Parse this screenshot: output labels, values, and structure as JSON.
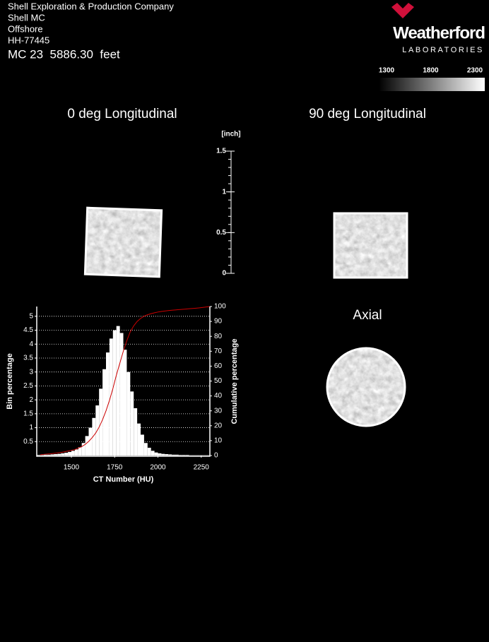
{
  "header": {
    "lines": [
      "Shell Exploration & Production Company",
      "Shell MC",
      "Offshore",
      "HH-77445"
    ],
    "sample": "MC 23  5886.30  feet"
  },
  "logo": {
    "name": "Weatherford",
    "sub": "LABORATORIES"
  },
  "colorbar": {
    "ticks": [
      1300,
      1800,
      2300
    ]
  },
  "panels": {
    "longitudinal_0": "0 deg Longitudinal",
    "longitudinal_90": "90 deg Longitudinal",
    "axial": "Axial"
  },
  "ruler": {
    "unit": "[inch]",
    "lim": [
      0,
      1.5
    ],
    "ticks": [
      0,
      0.5,
      1,
      1.5
    ]
  },
  "chart_data": {
    "type": "histogram",
    "x_label": "CT Number (HU)",
    "y_label": "Bin percentage",
    "y2_label": "Cumulative percentage",
    "color": "#ffffff",
    "cumulative_color": "#cc0000",
    "grid": true,
    "xlim": [
      1300,
      2300
    ],
    "xticks": [
      1500,
      1750,
      2000,
      2250
    ],
    "ylim": [
      0,
      5.35
    ],
    "yticks": [
      0.5,
      1,
      1.5,
      2,
      2.5,
      3,
      3.5,
      4,
      4.5,
      5
    ],
    "y2lim": [
      0,
      100
    ],
    "y2ticks": [
      0,
      10,
      20,
      30,
      40,
      50,
      60,
      70,
      80,
      90,
      100
    ],
    "bins": [
      1300,
      1320,
      1340,
      1360,
      1380,
      1400,
      1420,
      1440,
      1460,
      1480,
      1500,
      1520,
      1540,
      1560,
      1580,
      1600,
      1620,
      1640,
      1660,
      1680,
      1700,
      1720,
      1740,
      1760,
      1780,
      1800,
      1820,
      1840,
      1860,
      1880,
      1900,
      1920,
      1940,
      1960,
      1980,
      2000,
      2020,
      2040,
      2060,
      2080,
      2100,
      2120,
      2140,
      2160,
      2180,
      2200,
      2220,
      2240,
      2260,
      2280,
      2300
    ],
    "values": [
      0.02,
      0.02,
      0.03,
      0.03,
      0.04,
      0.05,
      0.06,
      0.08,
      0.1,
      0.13,
      0.17,
      0.22,
      0.3,
      0.45,
      0.7,
      1.0,
      1.35,
      1.8,
      2.4,
      3.1,
      3.7,
      4.2,
      4.5,
      4.65,
      4.4,
      3.8,
      3.0,
      2.3,
      1.7,
      1.15,
      0.75,
      0.45,
      0.28,
      0.17,
      0.11,
      0.08,
      0.06,
      0.05,
      0.04,
      0.03,
      0.03,
      0.02,
      0.02,
      0.02,
      0.01,
      0.01,
      0.01,
      0.01,
      0.01,
      0.01
    ],
    "cumulative": [
      0.5,
      0.8,
      1,
      1.2,
      1.5,
      1.8,
      2.1,
      2.5,
      3,
      3.5,
      4,
      5,
      6,
      7.5,
      9.5,
      12,
      15,
      19,
      24,
      30,
      37,
      45,
      54,
      62,
      70,
      77,
      83,
      87,
      90,
      92,
      93.5,
      94.5,
      95.2,
      95.8,
      96.3,
      96.7,
      97,
      97.3,
      97.5,
      97.7,
      97.9,
      98.1,
      98.3,
      98.5,
      98.7,
      98.9,
      99.1,
      99.4,
      99.7,
      100
    ]
  }
}
